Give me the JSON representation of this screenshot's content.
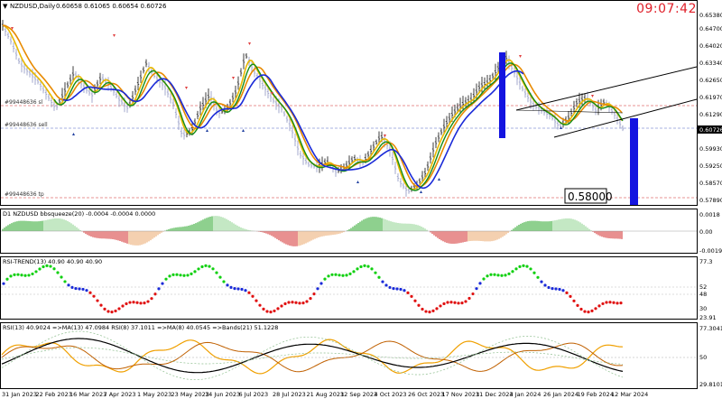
{
  "main_chart": {
    "header_symbol": "NZDUSD,Daily",
    "header_ohlc": "0.60658 0.61065 0.60654 0.60726",
    "clock": "09:07:42",
    "price_axis": [
      "0.65380",
      "0.64700",
      "0.64020",
      "0.63340",
      "0.62650",
      "0.61970",
      "0.61290",
      "0.60726",
      "0.59930",
      "0.59250",
      "0.58570",
      "0.57890"
    ],
    "current_price": "0.60726",
    "lines": [
      {
        "label": "#99448636 sl",
        "color": "#e04040"
      },
      {
        "label": "#99448636 sell",
        "color": "#6a7bd0"
      },
      {
        "label": "#99448636 tp",
        "color": "#e04040"
      }
    ],
    "target_label": "0.58000",
    "colors": {
      "bar_up": "#2a2a2a",
      "bar_down": "#9aa0c8",
      "ma_fast": "#e8b800",
      "ma_mid": "#e88a00",
      "ma_green": "#148c14",
      "ma_blue": "#1a2ad8",
      "highlight": "#1414e0"
    }
  },
  "panel_bbsqueeze": {
    "title": "D1 NZDUSD bbsqueeze(20) -0.0004 -0.0004 0.0000",
    "axis": [
      "0.0018",
      "0.00",
      "-0.0019"
    ]
  },
  "panel_rsi_trend": {
    "title": "RSI-TREND(13) 40.90 40.90 40.90",
    "axis": [
      "77.3",
      "52",
      "48",
      "30",
      "23.91"
    ]
  },
  "panel_rsi": {
    "title": "RSI(13) 40.9024  =>MA(13) 47.0984  RSI(8) 37.1011  =>MA(8) 40.0545  =>Bands(21) 51.1228",
    "axis": [
      "77.3041",
      "50",
      "29.8101"
    ]
  },
  "x_axis": [
    "31 Jan 2023",
    "22 Feb 2023",
    "16 Mar 2023",
    "7 Apr 2023",
    "1 May 2023",
    "23 May 2023",
    "14 Jun 2023",
    "6 Jul 2023",
    "28 Jul 2023",
    "21 Aug 2023",
    "12 Sep 2023",
    "4 Oct 2023",
    "26 Oct 2023",
    "17 Nov 2023",
    "11 Dec 2023",
    "4 Jan 2024",
    "26 Jan 2024",
    "19 Feb 2024",
    "12 Mar 2024"
  ]
}
